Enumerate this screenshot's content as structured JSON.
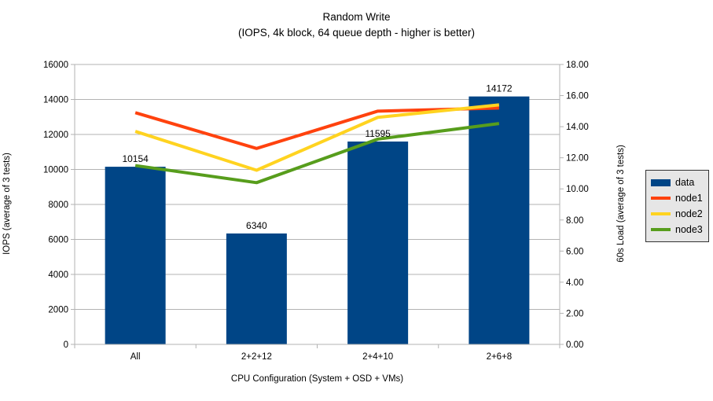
{
  "chart_data": {
    "type": "combo-bar-line",
    "title": "Random Write",
    "subtitle": "(IOPS, 4k block, 64 queue depth - higher is better)",
    "xlabel": "CPU Configuration (System + OSD + VMs)",
    "ylabel_left": "IOPS (average of 3 tests)",
    "ylabel_right": "60s Load (average of 3 tests)",
    "categories": [
      "All",
      "2+2+12",
      "2+4+10",
      "2+6+8"
    ],
    "bar_series": {
      "name": "data",
      "axis": "left",
      "color": "#004586",
      "values": [
        10154,
        6340,
        11595,
        14172
      ],
      "labels": [
        "10154",
        "6340",
        "11595",
        "14172"
      ]
    },
    "line_series": [
      {
        "name": "node1",
        "axis": "right",
        "color": "#ff420e",
        "values": [
          14.9,
          12.6,
          15.0,
          15.2
        ]
      },
      {
        "name": "node2",
        "axis": "right",
        "color": "#ffd320",
        "values": [
          13.7,
          11.2,
          14.6,
          15.4
        ]
      },
      {
        "name": "node3",
        "axis": "right",
        "color": "#579d1c",
        "values": [
          11.5,
          10.4,
          13.2,
          14.2
        ]
      }
    ],
    "left_axis": {
      "min": 0,
      "max": 16000,
      "ticks": [
        "0",
        "2000",
        "4000",
        "6000",
        "8000",
        "10000",
        "12000",
        "14000",
        "16000"
      ]
    },
    "right_axis": {
      "min": 0,
      "max": 18,
      "ticks": [
        "0.00",
        "2.00",
        "4.00",
        "6.00",
        "8.00",
        "10.00",
        "12.00",
        "14.00",
        "16.00",
        "18.00"
      ]
    },
    "grid": "horizontal",
    "legend": {
      "position": "right",
      "items": [
        {
          "label": "data",
          "swatch": "bar",
          "color": "#004586"
        },
        {
          "label": "node1",
          "swatch": "line",
          "color": "#ff420e"
        },
        {
          "label": "node2",
          "swatch": "line",
          "color": "#ffd320"
        },
        {
          "label": "node3",
          "swatch": "line",
          "color": "#579d1c"
        }
      ]
    },
    "colors": {
      "background": "#ffffff",
      "gridline": "#b3b3b3",
      "axis": "#b3b3b3",
      "text": "#000000",
      "legend_background": "#e6e6e6",
      "legend_border": "#333333"
    }
  }
}
